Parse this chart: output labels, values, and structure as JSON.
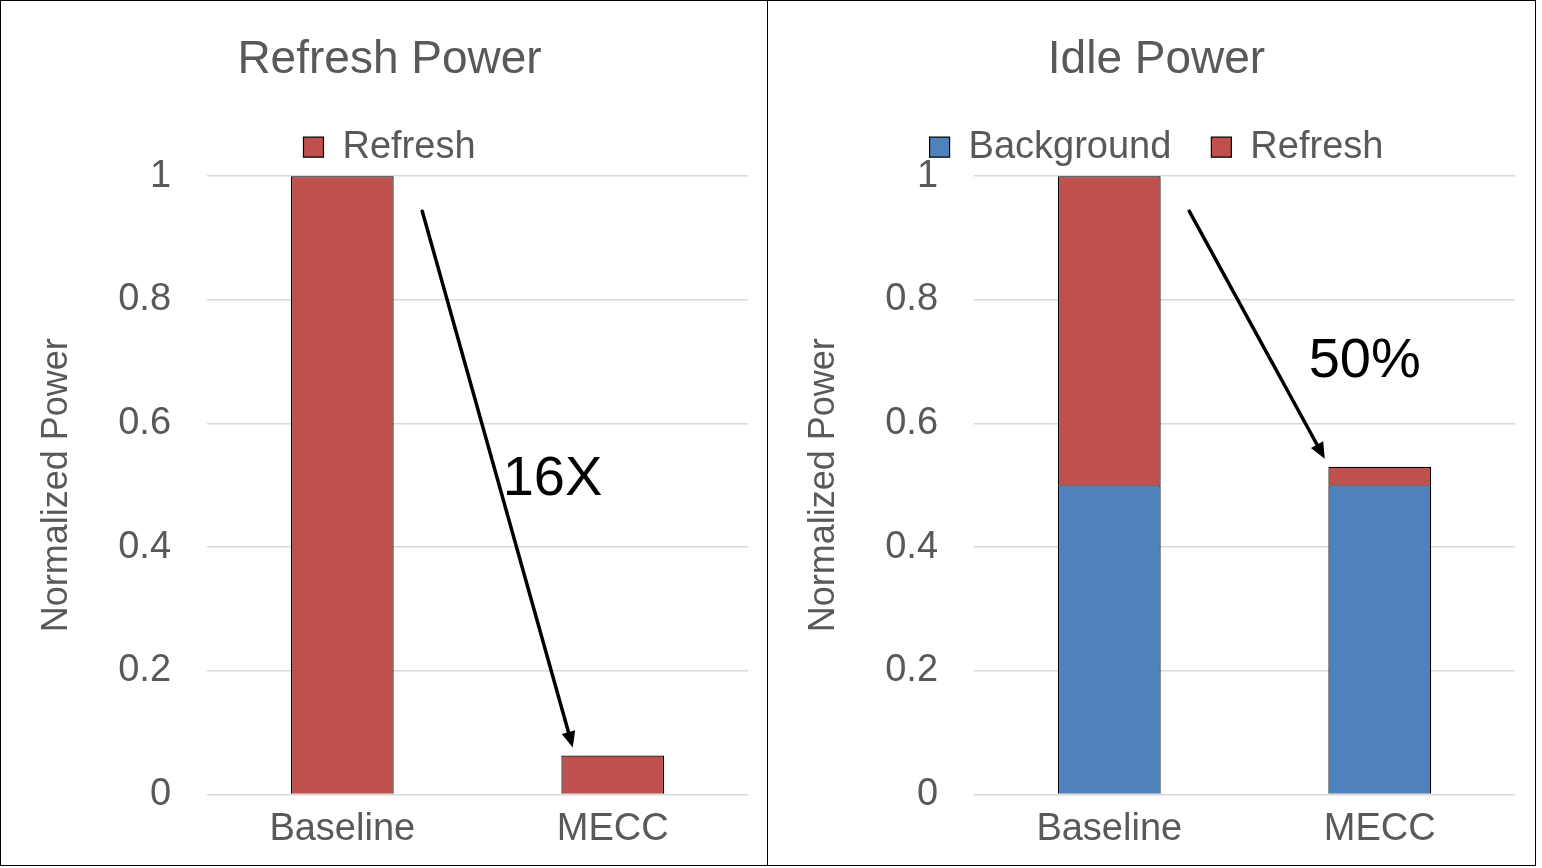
{
  "chart_data": [
    {
      "type": "bar",
      "title": "Refresh Power",
      "ylabel": "Normalized Power",
      "categories": [
        "Baseline",
        "MECC"
      ],
      "series": [
        {
          "name": "Refresh",
          "color": "#c0504d",
          "values": [
            1,
            0.063
          ]
        }
      ],
      "ylim": [
        0,
        1
      ],
      "yticks": [
        0,
        0.2,
        0.4,
        0.6,
        0.8,
        1
      ],
      "grid": "y",
      "legend": "top",
      "annotations": [
        "16X"
      ]
    },
    {
      "type": "bar",
      "title": "Idle Power",
      "ylabel": "Normalized Power",
      "categories": [
        "Baseline",
        "MECC"
      ],
      "stacked": true,
      "series": [
        {
          "name": "Background",
          "color": "#4f81bd",
          "values": [
            0.5,
            0.5
          ]
        },
        {
          "name": "Refresh",
          "color": "#c0504d",
          "values": [
            0.5,
            0.03
          ]
        }
      ],
      "ylim": [
        0,
        1
      ],
      "yticks": [
        0,
        0.2,
        0.4,
        0.6,
        0.8,
        1
      ],
      "grid": "y",
      "legend": "top",
      "annotations": [
        "50%"
      ]
    }
  ]
}
